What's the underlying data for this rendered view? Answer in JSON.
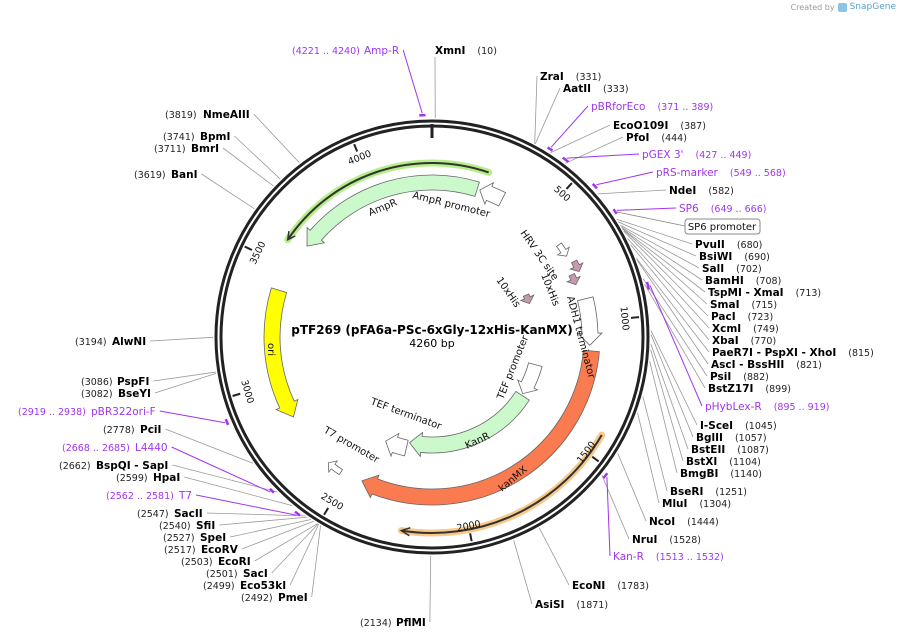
{
  "header": {
    "created_by": "Created by",
    "brand": "SnapGene"
  },
  "map": {
    "name": "pTF269 (pFA6a-PSc-6xGly-12xHis-KanMX)",
    "length": "4260 bp",
    "total_bp": 4260
  },
  "ticks": [
    "500",
    "1000",
    "1500",
    "2000",
    "2500",
    "3000",
    "3500",
    "4000"
  ],
  "features": {
    "ampr": "AmpR",
    "ampr_promoter": "AmpR promoter",
    "ori": "ori",
    "hrv": "HRV 3C site",
    "his1": "10xHis",
    "his2": "10xHis",
    "adh1": "ADH1 terminator",
    "tef_promoter": "TEF promoter",
    "kanr": "KanR",
    "tef_terminator": "TEF terminator",
    "t7_promoter": "T7 promoter",
    "kanmx": "kanMX",
    "sp6_promoter": "SP6 promoter"
  },
  "colors": {
    "backbone": "#222222",
    "primer": "#a035ee",
    "ampr": "#ccf9cc",
    "ori": "#ffff00",
    "kanmx": "#f97b4f",
    "his": "#c898b0"
  },
  "sites": [
    {
      "name": "XmnI",
      "pos": "(10)"
    },
    {
      "name": "ZraI",
      "pos": "(331)"
    },
    {
      "name": "AatII",
      "pos": "(333)"
    },
    {
      "name": "EcoO109I",
      "pos": "(387)"
    },
    {
      "name": "PfoI",
      "pos": "(444)"
    },
    {
      "name": "NdeI",
      "pos": "(582)"
    },
    {
      "name": "PvuII",
      "pos": "(680)"
    },
    {
      "name": "BsiWI",
      "pos": "(690)"
    },
    {
      "name": "SalI",
      "pos": "(702)"
    },
    {
      "name": "BamHI",
      "pos": "(708)"
    },
    {
      "name": "TspMI  - XmaI",
      "pos": "(713)"
    },
    {
      "name": "SmaI",
      "pos": "(715)"
    },
    {
      "name": "PacI",
      "pos": "(723)"
    },
    {
      "name": "XcmI",
      "pos": "(749)"
    },
    {
      "name": "XbaI",
      "pos": "(770)"
    },
    {
      "name": "PaeR7I  - PspXI  - XhoI",
      "pos": "(815)"
    },
    {
      "name": "AscI  - BssHII",
      "pos": "(821)"
    },
    {
      "name": "PsiI",
      "pos": "(882)"
    },
    {
      "name": "BstZ17I",
      "pos": "(899)"
    },
    {
      "name": "I-SceI",
      "pos": "(1045)"
    },
    {
      "name": "BglII",
      "pos": "(1057)"
    },
    {
      "name": "BstEII",
      "pos": "(1087)"
    },
    {
      "name": "BstXI",
      "pos": "(1104)"
    },
    {
      "name": "BmgBI",
      "pos": "(1140)"
    },
    {
      "name": "BseRI",
      "pos": "(1251)"
    },
    {
      "name": "MluI",
      "pos": "(1304)"
    },
    {
      "name": "NcoI",
      "pos": "(1444)"
    },
    {
      "name": "NruI",
      "pos": "(1528)"
    },
    {
      "name": "EcoNI",
      "pos": "(1783)"
    },
    {
      "name": "AsiSI",
      "pos": "(1871)"
    },
    {
      "name": "PflMI",
      "pos": "(2134)"
    },
    {
      "name": "PmeI",
      "pos": "(2492)"
    },
    {
      "name": "Eco53kI",
      "pos": "(2499)"
    },
    {
      "name": "SacI",
      "pos": "(2501)"
    },
    {
      "name": "EcoRI",
      "pos": "(2503)"
    },
    {
      "name": "EcoRV",
      "pos": "(2517)"
    },
    {
      "name": "SpeI",
      "pos": "(2527)"
    },
    {
      "name": "SfiI",
      "pos": "(2540)"
    },
    {
      "name": "SacII",
      "pos": "(2547)"
    },
    {
      "name": "HpaI",
      "pos": "(2599)"
    },
    {
      "name": "BspQI  - SapI",
      "pos": "(2662)"
    },
    {
      "name": "PciI",
      "pos": "(2778)"
    },
    {
      "name": "BseYI",
      "pos": "(3082)"
    },
    {
      "name": "PspFI",
      "pos": "(3086)"
    },
    {
      "name": "AlwNI",
      "pos": "(3194)"
    },
    {
      "name": "BanI",
      "pos": "(3619)"
    },
    {
      "name": "BmrI",
      "pos": "(3711)"
    },
    {
      "name": "BpmI",
      "pos": "(3741)"
    },
    {
      "name": "NmeAIII",
      "pos": "(3819)"
    }
  ],
  "primers": [
    {
      "name": "Amp-R",
      "range": "(4221 .. 4240)"
    },
    {
      "name": "pBRforEco",
      "range": "(371 .. 389)"
    },
    {
      "name": "pGEX 3'",
      "range": "(427 .. 449)"
    },
    {
      "name": "pRS-marker",
      "range": "(549 .. 568)"
    },
    {
      "name": "SP6",
      "range": "(649 .. 666)"
    },
    {
      "name": "pHybLex-R",
      "range": "(895 .. 919)"
    },
    {
      "name": "Kan-R",
      "range": "(1513 .. 1532)"
    },
    {
      "name": "pBR322ori-F",
      "range": "(2919 .. 2938)"
    },
    {
      "name": "L4440",
      "range": "(2668 .. 2685)"
    },
    {
      "name": "T7",
      "range": "(2562 .. 2581)"
    }
  ]
}
